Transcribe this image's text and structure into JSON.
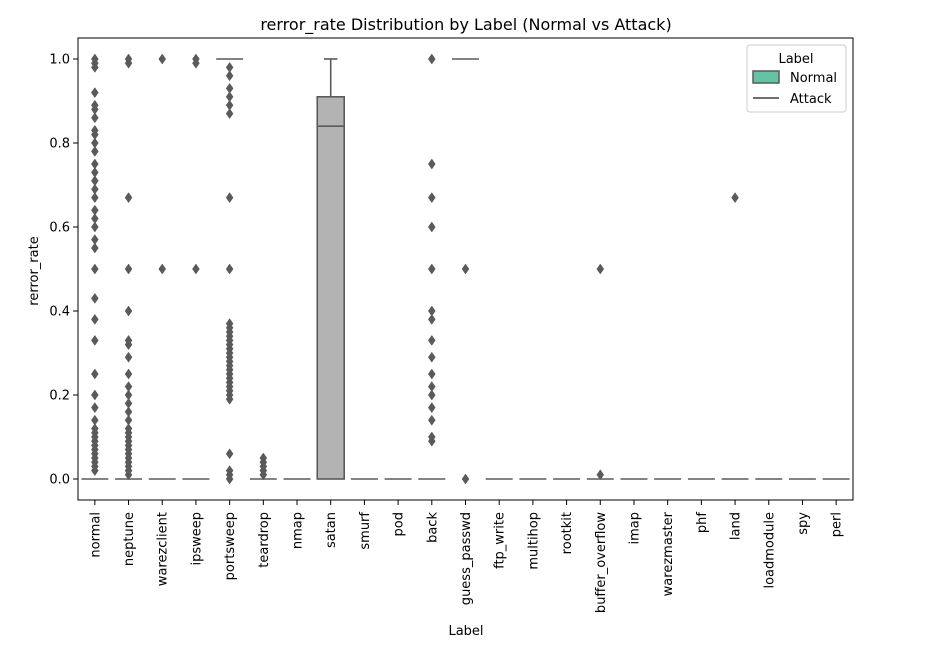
{
  "chart_data": {
    "type": "boxplot",
    "title": "rerror_rate Distribution by Label (Normal vs Attack)",
    "xlabel": "Label",
    "ylabel": "rerror_rate",
    "ylim": [
      -0.05,
      1.05
    ],
    "yticks": [
      0.0,
      0.2,
      0.4,
      0.6,
      0.8,
      1.0
    ],
    "ytick_labels": [
      "0.0",
      "0.2",
      "0.4",
      "0.6",
      "0.8",
      "1.0"
    ],
    "grid": false,
    "legend": {
      "title": "Label",
      "placement": "top-right",
      "entries": [
        {
          "label": "Normal",
          "color": "#66c2a5"
        },
        {
          "label": "Attack",
          "color": "#595959"
        }
      ]
    },
    "colors": {
      "box_fill": "#b3b3b3",
      "line": "#5a5a5a",
      "flier": "#5a5a5a"
    },
    "categories": [
      "normal",
      "neptune",
      "warezclient",
      "ipsweep",
      "portsweep",
      "teardrop",
      "nmap",
      "satan",
      "smurf",
      "pod",
      "back",
      "guess_passwd",
      "ftp_write",
      "multihop",
      "rootkit",
      "buffer_overflow",
      "imap",
      "warezmaster",
      "phf",
      "land",
      "loadmodule",
      "spy",
      "perl"
    ],
    "boxes": [
      {
        "category": "normal",
        "q1": 0,
        "median": 0,
        "q3": 0,
        "whislo": 0,
        "whishi": 0,
        "fliers": [
          0.02,
          0.03,
          0.04,
          0.05,
          0.06,
          0.07,
          0.08,
          0.09,
          0.1,
          0.11,
          0.12,
          0.14,
          0.17,
          0.2,
          0.25,
          0.33,
          0.38,
          0.43,
          0.5,
          0.55,
          0.57,
          0.6,
          0.62,
          0.64,
          0.67,
          0.69,
          0.71,
          0.73,
          0.75,
          0.78,
          0.8,
          0.82,
          0.83,
          0.86,
          0.88,
          0.89,
          0.92,
          0.98,
          0.99,
          1.0
        ]
      },
      {
        "category": "neptune",
        "q1": 0,
        "median": 0,
        "q3": 0,
        "whislo": 0,
        "whishi": 0,
        "fliers": [
          0.01,
          0.02,
          0.03,
          0.04,
          0.05,
          0.06,
          0.07,
          0.08,
          0.09,
          0.1,
          0.11,
          0.12,
          0.14,
          0.16,
          0.18,
          0.2,
          0.22,
          0.25,
          0.29,
          0.32,
          0.33,
          0.4,
          0.5,
          0.67,
          0.99,
          1.0
        ]
      },
      {
        "category": "warezclient",
        "q1": 0,
        "median": 0,
        "q3": 0,
        "whislo": 0,
        "whishi": 0,
        "fliers": [
          0.5,
          1.0
        ]
      },
      {
        "category": "ipsweep",
        "q1": 0,
        "median": 0,
        "q3": 0,
        "whislo": 0,
        "whishi": 0,
        "fliers": [
          0.5,
          0.99,
          1.0
        ]
      },
      {
        "category": "portsweep",
        "q1": 1.0,
        "median": 1.0,
        "q3": 1.0,
        "whislo": 1.0,
        "whishi": 1.0,
        "fliers": [
          0.0,
          0.01,
          0.02,
          0.06,
          0.19,
          0.2,
          0.21,
          0.22,
          0.23,
          0.24,
          0.25,
          0.26,
          0.27,
          0.28,
          0.29,
          0.3,
          0.31,
          0.32,
          0.33,
          0.34,
          0.35,
          0.36,
          0.37,
          0.5,
          0.67,
          0.87,
          0.89,
          0.91,
          0.93,
          0.96,
          0.98
        ]
      },
      {
        "category": "teardrop",
        "q1": 0,
        "median": 0,
        "q3": 0,
        "whislo": 0,
        "whishi": 0,
        "fliers": [
          0.01,
          0.02,
          0.03,
          0.04,
          0.05
        ]
      },
      {
        "category": "nmap",
        "q1": 0,
        "median": 0,
        "q3": 0,
        "whislo": 0,
        "whishi": 0,
        "fliers": []
      },
      {
        "category": "satan",
        "q1": 0.0,
        "median": 0.84,
        "q3": 0.91,
        "whislo": 0.0,
        "whishi": 1.0,
        "fliers": []
      },
      {
        "category": "smurf",
        "q1": 0,
        "median": 0,
        "q3": 0,
        "whislo": 0,
        "whishi": 0,
        "fliers": []
      },
      {
        "category": "pod",
        "q1": 0,
        "median": 0,
        "q3": 0,
        "whislo": 0,
        "whishi": 0,
        "fliers": []
      },
      {
        "category": "back",
        "q1": 0,
        "median": 0,
        "q3": 0,
        "whislo": 0,
        "whishi": 0,
        "fliers": [
          0.09,
          0.1,
          0.14,
          0.17,
          0.2,
          0.22,
          0.25,
          0.29,
          0.33,
          0.38,
          0.4,
          0.5,
          0.6,
          0.67,
          0.75,
          1.0
        ]
      },
      {
        "category": "guess_passwd",
        "q1": 1.0,
        "median": 1.0,
        "q3": 1.0,
        "whislo": 1.0,
        "whishi": 1.0,
        "fliers": [
          0.0,
          0.5
        ]
      },
      {
        "category": "ftp_write",
        "q1": 0,
        "median": 0,
        "q3": 0,
        "whislo": 0,
        "whishi": 0,
        "fliers": []
      },
      {
        "category": "multihop",
        "q1": 0,
        "median": 0,
        "q3": 0,
        "whislo": 0,
        "whishi": 0,
        "fliers": []
      },
      {
        "category": "rootkit",
        "q1": 0,
        "median": 0,
        "q3": 0,
        "whislo": 0,
        "whishi": 0,
        "fliers": []
      },
      {
        "category": "buffer_overflow",
        "q1": 0,
        "median": 0,
        "q3": 0,
        "whislo": 0,
        "whishi": 0,
        "fliers": [
          0.01,
          0.5
        ]
      },
      {
        "category": "imap",
        "q1": 0,
        "median": 0,
        "q3": 0,
        "whislo": 0,
        "whishi": 0,
        "fliers": []
      },
      {
        "category": "warezmaster",
        "q1": 0,
        "median": 0,
        "q3": 0,
        "whislo": 0,
        "whishi": 0,
        "fliers": []
      },
      {
        "category": "phf",
        "q1": 0,
        "median": 0,
        "q3": 0,
        "whislo": 0,
        "whishi": 0,
        "fliers": []
      },
      {
        "category": "land",
        "q1": 0,
        "median": 0,
        "q3": 0,
        "whislo": 0,
        "whishi": 0,
        "fliers": [
          0.67
        ]
      },
      {
        "category": "loadmodule",
        "q1": 0,
        "median": 0,
        "q3": 0,
        "whislo": 0,
        "whishi": 0,
        "fliers": []
      },
      {
        "category": "spy",
        "q1": 0,
        "median": 0,
        "q3": 0,
        "whislo": 0,
        "whishi": 0,
        "fliers": []
      },
      {
        "category": "perl",
        "q1": 0,
        "median": 0,
        "q3": 0,
        "whislo": 0,
        "whishi": 0,
        "fliers": []
      }
    ]
  }
}
